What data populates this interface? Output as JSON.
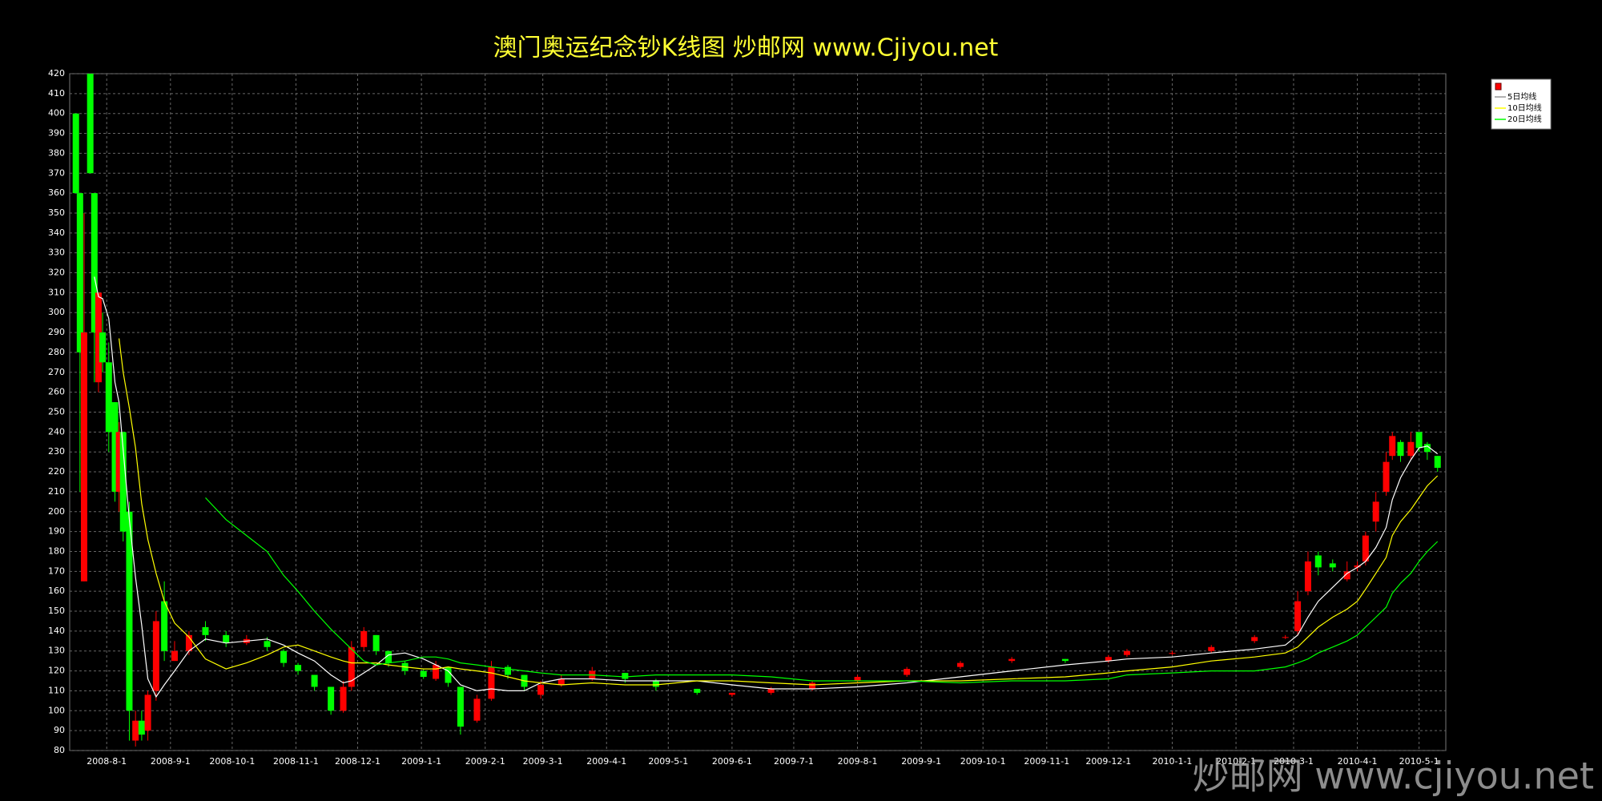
{
  "chart_data": {
    "type": "candlestick",
    "title": "澳门奥运纪念钞K线图  炒邮网 www.Cjiyou.net",
    "watermark": "炒邮网 www.cjiyou.net",
    "x": [
      "2008-7-17",
      "2008-7-19",
      "2008-7-21",
      "2008-7-24",
      "2008-7-26",
      "2008-7-28",
      "2008-7-30",
      "2008-8-2",
      "2008-8-5",
      "2008-8-7",
      "2008-8-9",
      "2008-8-12",
      "2008-8-15",
      "2008-8-18",
      "2008-8-21",
      "2008-8-25",
      "2008-8-29",
      "2008-9-3",
      "2008-9-10",
      "2008-9-18",
      "2008-9-28",
      "2008-10-8",
      "2008-10-18",
      "2008-10-26",
      "2008-11-2",
      "2008-11-10",
      "2008-11-18",
      "2008-11-24",
      "2008-11-28",
      "2008-12-4",
      "2008-12-10",
      "2008-12-16",
      "2008-12-24",
      "2009-1-2",
      "2009-1-8",
      "2009-1-14",
      "2009-1-20",
      "2009-1-28",
      "2009-2-4",
      "2009-2-12",
      "2009-2-20",
      "2009-2-28",
      "2009-3-10",
      "2009-3-25",
      "2009-4-10",
      "2009-4-25",
      "2009-5-15",
      "2009-6-1",
      "2009-6-20",
      "2009-7-10",
      "2009-8-1",
      "2009-8-25",
      "2009-9-20",
      "2009-10-15",
      "2009-11-10",
      "2009-12-1",
      "2009-12-10",
      "2010-1-1",
      "2010-1-20",
      "2010-2-10",
      "2010-2-25",
      "2010-3-3",
      "2010-3-8",
      "2010-3-13",
      "2010-3-20",
      "2010-3-27",
      "2010-4-1",
      "2010-4-5",
      "2010-4-10",
      "2010-4-15",
      "2010-4-18",
      "2010-4-22",
      "2010-4-27",
      "2010-5-1",
      "2010-5-5",
      "2010-5-10"
    ],
    "open": [
      400,
      360,
      165,
      420,
      360,
      265,
      290,
      275,
      255,
      210,
      240,
      200,
      85,
      95,
      90,
      110,
      155,
      125,
      130,
      142,
      138,
      134,
      135,
      130,
      123,
      118,
      112,
      100,
      112,
      132,
      138,
      130,
      124,
      120,
      116,
      122,
      112,
      95,
      106,
      122,
      118,
      108,
      113,
      116,
      119,
      115,
      111,
      108,
      109,
      111,
      115,
      118,
      122,
      125,
      126,
      125,
      128,
      129,
      130,
      135,
      137,
      140,
      160,
      178,
      174,
      166,
      172,
      175,
      195,
      210,
      228,
      235,
      228,
      240,
      234,
      228
    ],
    "high": [
      400,
      360,
      350,
      420,
      360,
      310,
      300,
      285,
      255,
      245,
      240,
      205,
      100,
      100,
      110,
      150,
      165,
      135,
      140,
      145,
      140,
      138,
      137,
      131,
      124,
      118,
      112,
      115,
      135,
      142,
      138,
      130,
      125,
      121,
      125,
      122,
      112,
      108,
      125,
      123,
      118,
      115,
      118,
      122,
      119,
      116,
      111,
      109,
      112,
      115,
      118,
      122,
      125,
      127,
      126,
      128,
      131,
      130,
      133,
      138,
      138,
      160,
      180,
      180,
      176,
      175,
      175,
      190,
      210,
      230,
      240,
      236,
      240,
      240,
      235,
      228
    ],
    "low": [
      360,
      210,
      165,
      370,
      265,
      260,
      270,
      230,
      205,
      200,
      185,
      85,
      82,
      85,
      85,
      105,
      125,
      125,
      128,
      135,
      132,
      133,
      130,
      122,
      118,
      110,
      98,
      99,
      110,
      130,
      128,
      122,
      118,
      116,
      115,
      112,
      88,
      94,
      105,
      116,
      110,
      106,
      112,
      115,
      114,
      110,
      108,
      107,
      108,
      110,
      114,
      117,
      121,
      124,
      124,
      124,
      127,
      128,
      129,
      134,
      136,
      138,
      158,
      168,
      170,
      165,
      170,
      173,
      190,
      208,
      226,
      225,
      226,
      230,
      226,
      220
    ],
    "close": [
      360,
      280,
      290,
      370,
      290,
      310,
      275,
      240,
      210,
      240,
      190,
      100,
      95,
      88,
      108,
      145,
      130,
      130,
      138,
      138,
      134,
      136,
      132,
      124,
      120,
      112,
      100,
      112,
      132,
      140,
      130,
      124,
      120,
      117,
      123,
      114,
      92,
      106,
      122,
      118,
      112,
      113,
      116,
      120,
      116,
      112,
      109,
      109,
      111,
      114,
      117,
      121,
      124,
      126,
      125,
      127,
      130,
      129,
      132,
      137,
      137,
      155,
      175,
      172,
      172,
      170,
      173,
      188,
      205,
      225,
      238,
      228,
      235,
      232,
      230,
      222
    ],
    "up_color": "#ff0000",
    "down_color": "#00ff00",
    "series": [
      {
        "name": "5日均线",
        "color": "#ffffff",
        "values": [
          null,
          null,
          null,
          null,
          318,
          308,
          307,
          297,
          265,
          255,
          231,
          196,
          167,
          143,
          116,
          107,
          113,
          120,
          130,
          136,
          134,
          135,
          136,
          133,
          129,
          125,
          118,
          114,
          115,
          119,
          123,
          128,
          129,
          126,
          123,
          120,
          113,
          110,
          111,
          110,
          110,
          114,
          116,
          116,
          115,
          115,
          115,
          113,
          111,
          111,
          112,
          114,
          117,
          120,
          123,
          125,
          126,
          127,
          129,
          131,
          133,
          138,
          147,
          155,
          162,
          169,
          172,
          175,
          182,
          192,
          206,
          217,
          226,
          232,
          233,
          229
        ]
      },
      {
        "name": "10日均线",
        "color": "#ffff00",
        "values": [
          null,
          null,
          null,
          null,
          null,
          null,
          null,
          null,
          null,
          287,
          270,
          252,
          232,
          204,
          186,
          169,
          155,
          144,
          137,
          126,
          121,
          124,
          128,
          132,
          133,
          130,
          127,
          125,
          124,
          124,
          124,
          123,
          122,
          121,
          121,
          122,
          121,
          120,
          119,
          117,
          115,
          114,
          113,
          114,
          113,
          113,
          115,
          115,
          114,
          113,
          114,
          115,
          115,
          116,
          117,
          119,
          120,
          122,
          125,
          127,
          129,
          132,
          137,
          142,
          147,
          151,
          155,
          161,
          169,
          177,
          188,
          195,
          201,
          207,
          213,
          218
        ]
      },
      {
        "name": "20日均线",
        "color": "#00ff00",
        "values": [
          null,
          null,
          null,
          null,
          null,
          null,
          null,
          null,
          null,
          null,
          null,
          null,
          null,
          null,
          null,
          null,
          null,
          null,
          null,
          207,
          196,
          188,
          180,
          168,
          160,
          150,
          141,
          135,
          131,
          125,
          123,
          124,
          125,
          127,
          127,
          126,
          124,
          123,
          122,
          121,
          120,
          119,
          118,
          118,
          117,
          118,
          118,
          118,
          117,
          115,
          115,
          115,
          114,
          115,
          115,
          116,
          118,
          119,
          120,
          120,
          122,
          124,
          126,
          129,
          132,
          135,
          138,
          142,
          147,
          152,
          159,
          164,
          169,
          175,
          180,
          185
        ]
      }
    ],
    "xlim": [
      "2008-7-14",
      "2010-5-14"
    ],
    "xticks": [
      "2008-8-1",
      "2008-9-1",
      "2008-10-1",
      "2008-11-1",
      "2008-12-1",
      "2009-1-1",
      "2009-2-1",
      "2009-3-1",
      "2009-4-1",
      "2009-5-1",
      "2009-6-1",
      "2009-7-1",
      "2009-8-1",
      "2009-9-1",
      "2009-10-1",
      "2009-11-1",
      "2009-12-1",
      "2010-1-1",
      "2010-2-1",
      "2010-3-1",
      "2010-4-1",
      "2010-5-1"
    ],
    "ylim": [
      80,
      420
    ],
    "yticks": [
      80,
      90,
      100,
      110,
      120,
      130,
      140,
      150,
      160,
      170,
      180,
      190,
      200,
      210,
      220,
      230,
      240,
      250,
      260,
      270,
      280,
      290,
      300,
      310,
      320,
      330,
      340,
      350,
      360,
      370,
      380,
      390,
      400,
      410,
      420
    ],
    "grid": true,
    "legend": "top-right"
  }
}
